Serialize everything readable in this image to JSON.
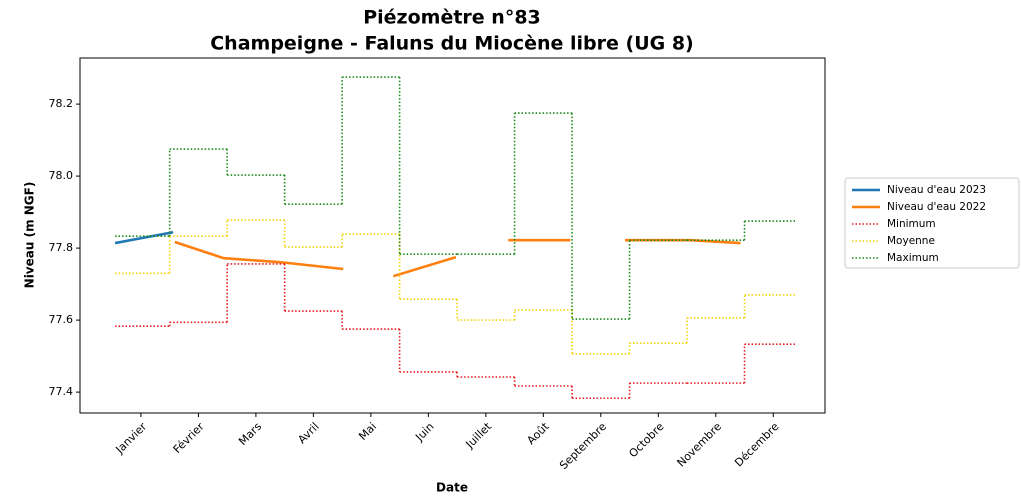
{
  "chart_data": {
    "type": "line",
    "title": "Piézomètre n°83",
    "subtitle": "Champeigne - Faluns du Miocène libre (UG 8)",
    "x_label": "Date",
    "y_label": "Niveau (m NGF)",
    "xlim": [
      -0.06,
      12.9
    ],
    "xticks": [
      {
        "value": 1,
        "label": "Janvier"
      },
      {
        "value": 2,
        "label": "Février"
      },
      {
        "value": 3,
        "label": "Mars"
      },
      {
        "value": 4,
        "label": "Avril"
      },
      {
        "value": 5,
        "label": "Mai"
      },
      {
        "value": 6,
        "label": "Juin"
      },
      {
        "value": 7,
        "label": "Juillet"
      },
      {
        "value": 8,
        "label": "Août"
      },
      {
        "value": 9,
        "label": "Septembre"
      },
      {
        "value": 10,
        "label": "Octobre"
      },
      {
        "value": 11,
        "label": "Novembre"
      },
      {
        "value": 12,
        "label": "Décembre"
      }
    ],
    "ylim": [
      77.342,
      78.328
    ],
    "yticks": [
      77.4,
      77.6,
      77.8,
      {
        "value": 78,
        "label": "78.0"
      },
      78.2
    ],
    "x": [
      1,
      2,
      3,
      4,
      5,
      6,
      7,
      8,
      9,
      10,
      11,
      12
    ],
    "legend": "outside right",
    "series": [
      {
        "name": "Niveau d'eau 2023",
        "color": "#1f77b4",
        "linestyle": "solid",
        "x": [
          0.55,
          1.56
        ],
        "values": [
          77.814,
          77.844
        ]
      },
      {
        "name": "Niveau d'eau 2022",
        "color": "#ff7f0e",
        "linestyle": "solid",
        "x": [
          1.59,
          2.44,
          3.42,
          4.52,
          null,
          5.39,
          6.48,
          null,
          7.39,
          8.47,
          null,
          9.42,
          10.56,
          11.43
        ],
        "values": [
          77.817,
          77.772,
          77.761,
          77.742,
          null,
          77.722,
          77.775,
          null,
          77.822,
          77.822,
          null,
          77.822,
          77.822,
          77.814
        ]
      },
      {
        "name": "Minimum",
        "color": "#e8191e",
        "linestyle": "dotted",
        "step": "mid",
        "values": [
          77.583,
          77.594,
          77.756,
          77.625,
          77.575,
          77.456,
          77.442,
          77.417,
          77.383,
          77.425,
          77.425,
          77.533
        ]
      },
      {
        "name": "Moyenne",
        "color": "#f5d20a",
        "linestyle": "dotted",
        "step": "mid",
        "values": [
          77.73,
          77.833,
          77.878,
          77.803,
          77.839,
          77.658,
          77.6,
          77.628,
          77.506,
          77.536,
          77.606,
          77.67
        ]
      },
      {
        "name": "Maximum",
        "color": "#1a8a1a",
        "linestyle": "dotted",
        "step": "mid",
        "values": [
          77.833,
          78.075,
          78.003,
          77.922,
          78.275,
          77.783,
          77.783,
          78.175,
          77.603,
          77.822,
          77.822,
          77.875
        ]
      }
    ]
  }
}
